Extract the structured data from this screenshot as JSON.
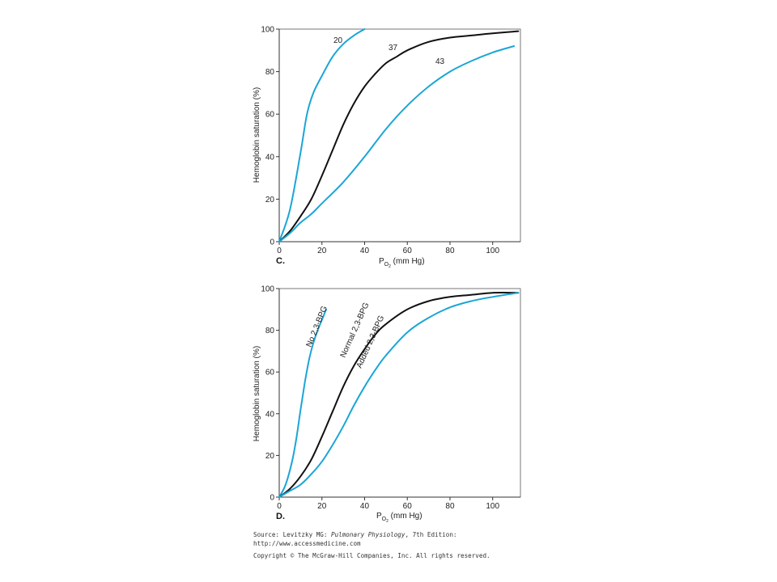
{
  "colors": {
    "blue": "#1aa6d6",
    "black": "#111111"
  },
  "chart_data": [
    {
      "type": "line",
      "panel_label": "C.",
      "xlabel": "P",
      "xlabel_sub": "O",
      "xlabel_subsub": "2",
      "xlabel_rest": " (mm Hg)",
      "ylabel": "Hemoglobin saturation  (%)",
      "xlim": [
        0,
        113
      ],
      "ylim": [
        0,
        100
      ],
      "xticks": [
        "0",
        "20",
        "40",
        "60",
        "80",
        "100"
      ],
      "yticks": [
        "0",
        "20",
        "40",
        "60",
        "80",
        "100"
      ],
      "grid": false,
      "series": [
        {
          "name": "20",
          "color": "blue",
          "x": [
            0,
            5,
            10,
            13,
            16,
            20,
            25,
            30,
            35,
            40
          ],
          "y": [
            0,
            15,
            42,
            60,
            70,
            78,
            87,
            93,
            97,
            100
          ]
        },
        {
          "name": "37",
          "color": "black",
          "x": [
            0,
            5,
            10,
            15,
            20,
            25,
            30,
            35,
            40,
            45,
            50,
            55,
            60,
            70,
            80,
            90,
            100,
            112
          ],
          "y": [
            0,
            5,
            12,
            20,
            31,
            43,
            55,
            65,
            73,
            79,
            84,
            87,
            90,
            94,
            96,
            97,
            98,
            99
          ]
        },
        {
          "name": "43",
          "color": "blue",
          "x": [
            0,
            5,
            10,
            15,
            20,
            30,
            40,
            50,
            60,
            70,
            80,
            90,
            100,
            110
          ],
          "y": [
            0,
            4,
            9,
            13,
            18,
            28,
            40,
            53,
            64,
            73,
            80,
            85,
            89,
            92
          ]
        }
      ]
    },
    {
      "type": "line",
      "panel_label": "D.",
      "xlabel": "P",
      "xlabel_sub": "O",
      "xlabel_subsub": "2",
      "xlabel_rest": " (mm Hg)",
      "ylabel": "Hemoglobin saturation (%)",
      "xlim": [
        0,
        113
      ],
      "ylim": [
        0,
        100
      ],
      "xticks": [
        "0",
        "20",
        "40",
        "60",
        "80",
        "100"
      ],
      "yticks": [
        "0",
        "20",
        "40",
        "60",
        "80",
        "100"
      ],
      "grid": false,
      "series": [
        {
          "name": "No 2,3-BPG",
          "color": "blue",
          "x": [
            0,
            3,
            6,
            8,
            10,
            12,
            14,
            16,
            18,
            20,
            22
          ],
          "y": [
            0,
            6,
            17,
            28,
            42,
            55,
            66,
            74,
            80,
            85,
            90
          ]
        },
        {
          "name": "Normal 2,3-BPG",
          "color": "black",
          "x": [
            0,
            5,
            10,
            15,
            20,
            25,
            30,
            35,
            40,
            45,
            50,
            60,
            70,
            80,
            90,
            100,
            112
          ],
          "y": [
            0,
            4,
            10,
            18,
            29,
            41,
            53,
            63,
            71,
            78,
            83,
            90,
            94,
            96,
            97,
            98,
            98
          ]
        },
        {
          "name": "Added 2,3-BPG",
          "color": "blue",
          "x": [
            0,
            5,
            10,
            15,
            20,
            25,
            30,
            35,
            40,
            45,
            50,
            60,
            70,
            80,
            90,
            100,
            112
          ],
          "y": [
            0,
            3,
            6,
            11,
            17,
            25,
            34,
            44,
            53,
            61,
            68,
            79,
            86,
            91,
            94,
            96,
            98
          ]
        }
      ]
    }
  ],
  "source": {
    "prefix": "Source: Levitzky MG: ",
    "book": "Pulmonary Physiology",
    "suffix": ", 7th Edition:",
    "url": "http://www.accessmedicine.com",
    "copyright": "Copyright © The McGraw-Hill Companies, Inc. All rights reserved."
  }
}
